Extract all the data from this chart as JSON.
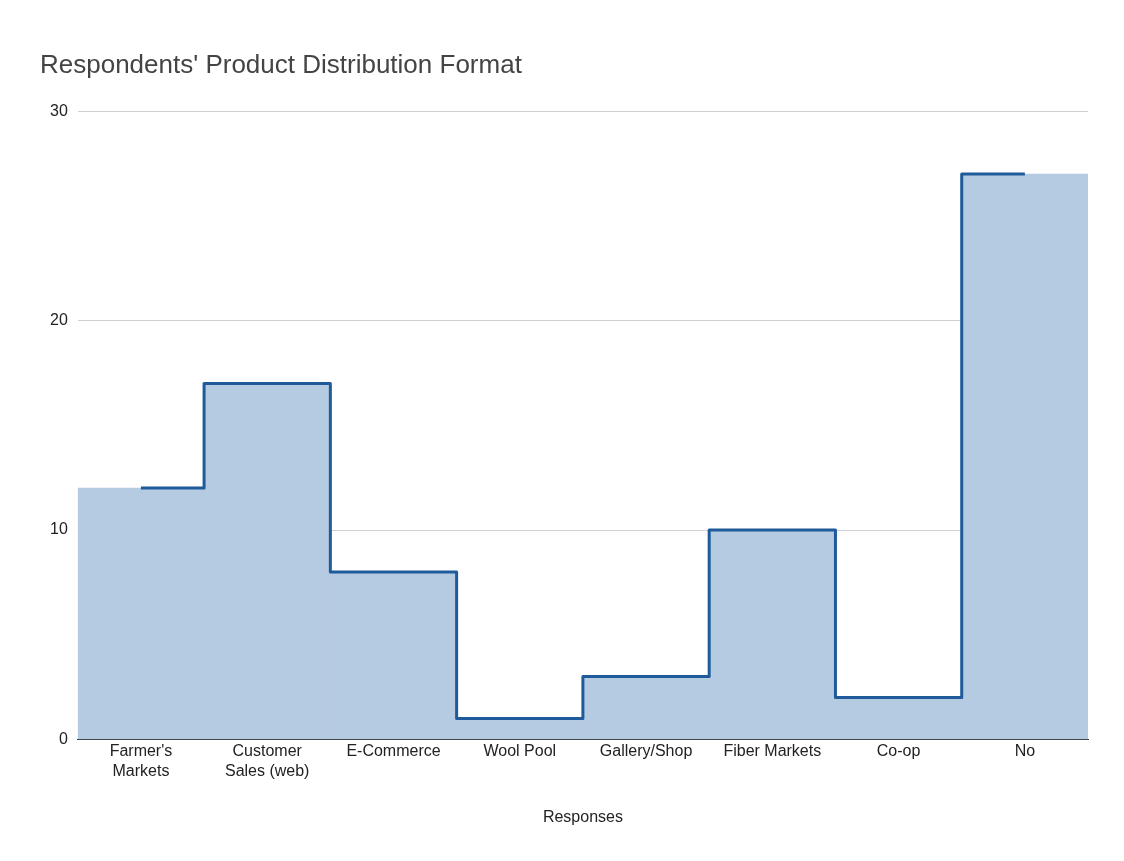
{
  "chart_data": {
    "type": "bar",
    "title": "Respondents' Product Distribution Format",
    "xlabel": "Responses",
    "categories": [
      "Farmer's Markets",
      "Customer Sales (web)",
      "E-Commerce",
      "Wool Pool",
      "Gallery/Shop",
      "Fiber Markets",
      "Co-op",
      "No"
    ],
    "series": [
      {
        "color": "#b5cbe1",
        "values": [
          12,
          17,
          8,
          1,
          3,
          10,
          2,
          27
        ]
      },
      {
        "type": "step",
        "color": "#1f5a9a",
        "values": [
          12,
          17,
          8,
          1,
          3,
          10,
          2,
          27
        ]
      }
    ],
    "ylim": [
      0,
      30
    ],
    "yticks": [
      0,
      10,
      20,
      30
    ],
    "grid": "y",
    "legend": false
  }
}
